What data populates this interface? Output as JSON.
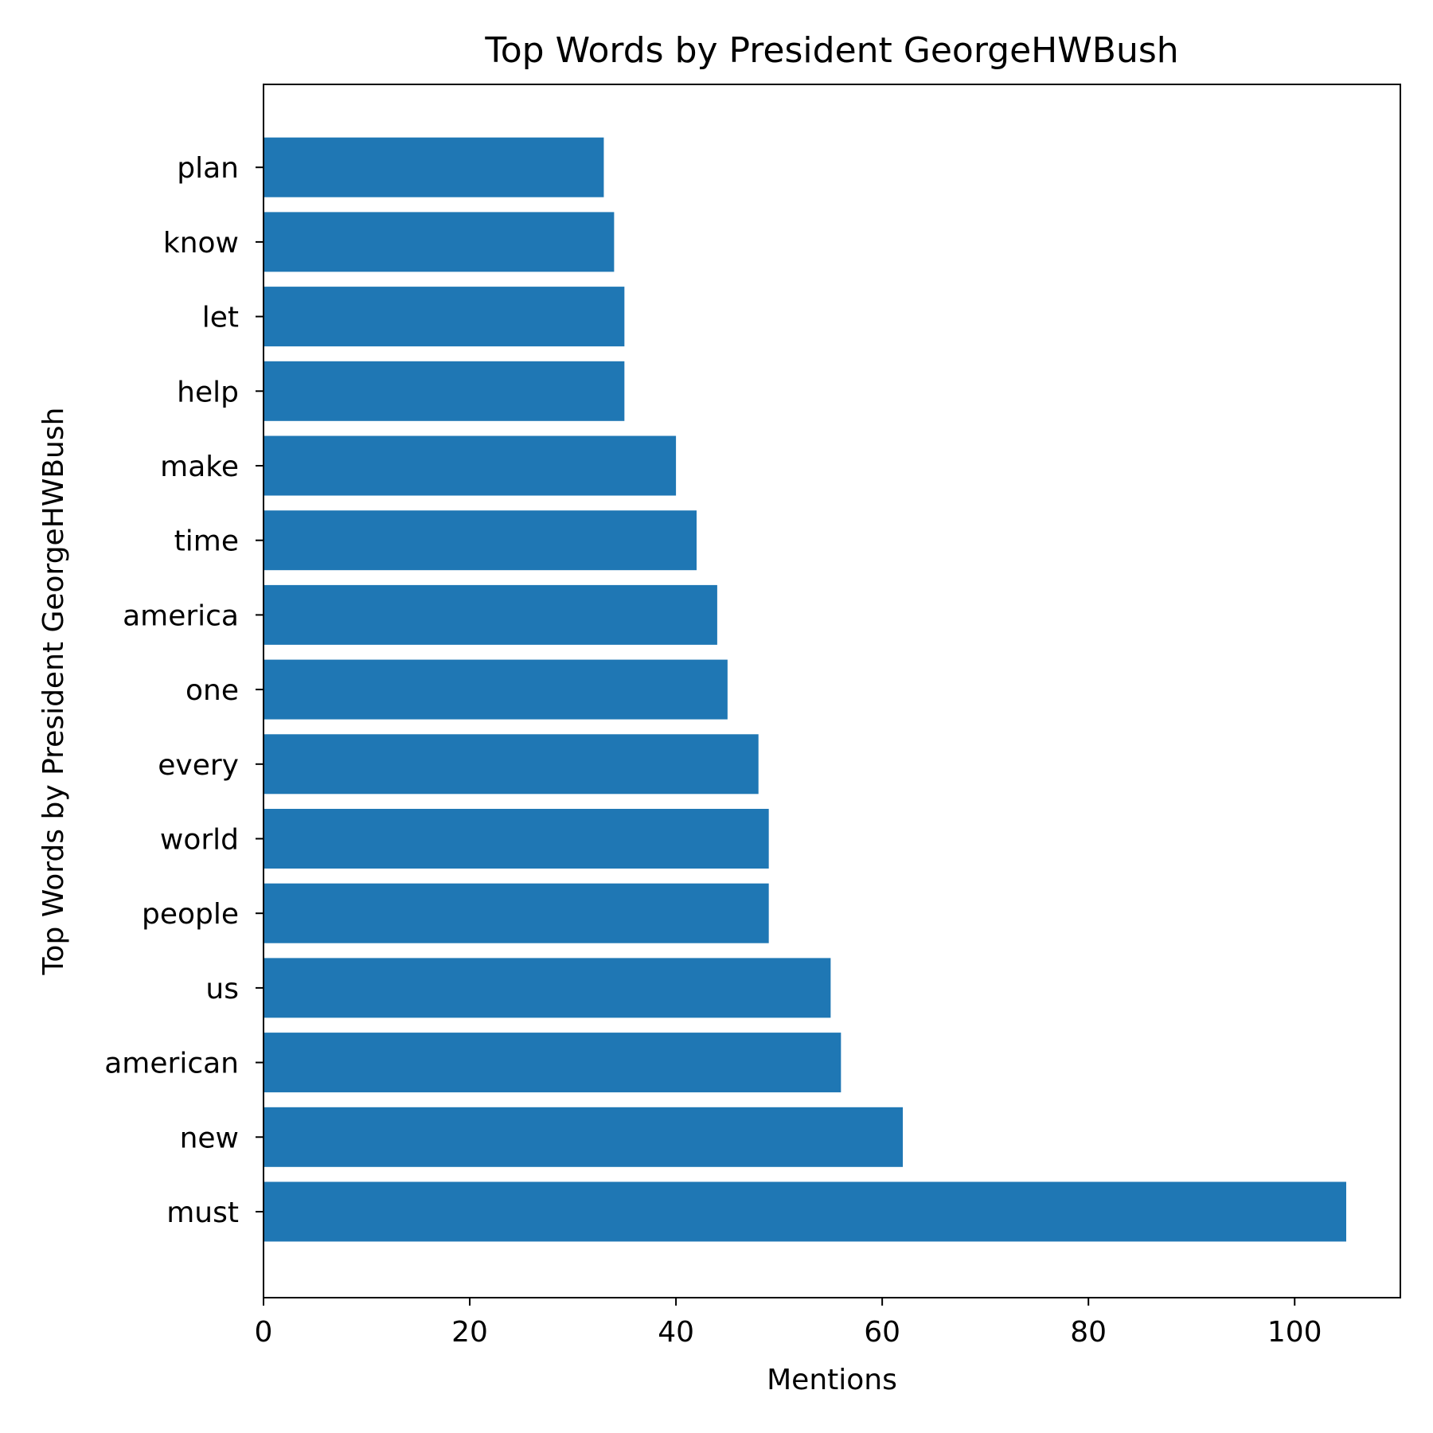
{
  "chart_data": {
    "type": "bar",
    "orientation": "horizontal",
    "title": "Top Words by President GeorgeHWBush",
    "xlabel": "Mentions",
    "ylabel": "Top Words by President GeorgeHWBush",
    "categories": [
      "must",
      "new",
      "american",
      "us",
      "people",
      "world",
      "every",
      "one",
      "america",
      "time",
      "make",
      "help",
      "let",
      "know",
      "plan"
    ],
    "values": [
      105,
      62,
      56,
      55,
      49,
      49,
      48,
      45,
      44,
      42,
      40,
      35,
      35,
      34,
      33
    ],
    "xlim": [
      0,
      110.25
    ],
    "xticks": [
      0,
      20,
      40,
      60,
      80,
      100
    ],
    "bar_color": "#1f77b4",
    "grid": false,
    "legend": "none"
  }
}
